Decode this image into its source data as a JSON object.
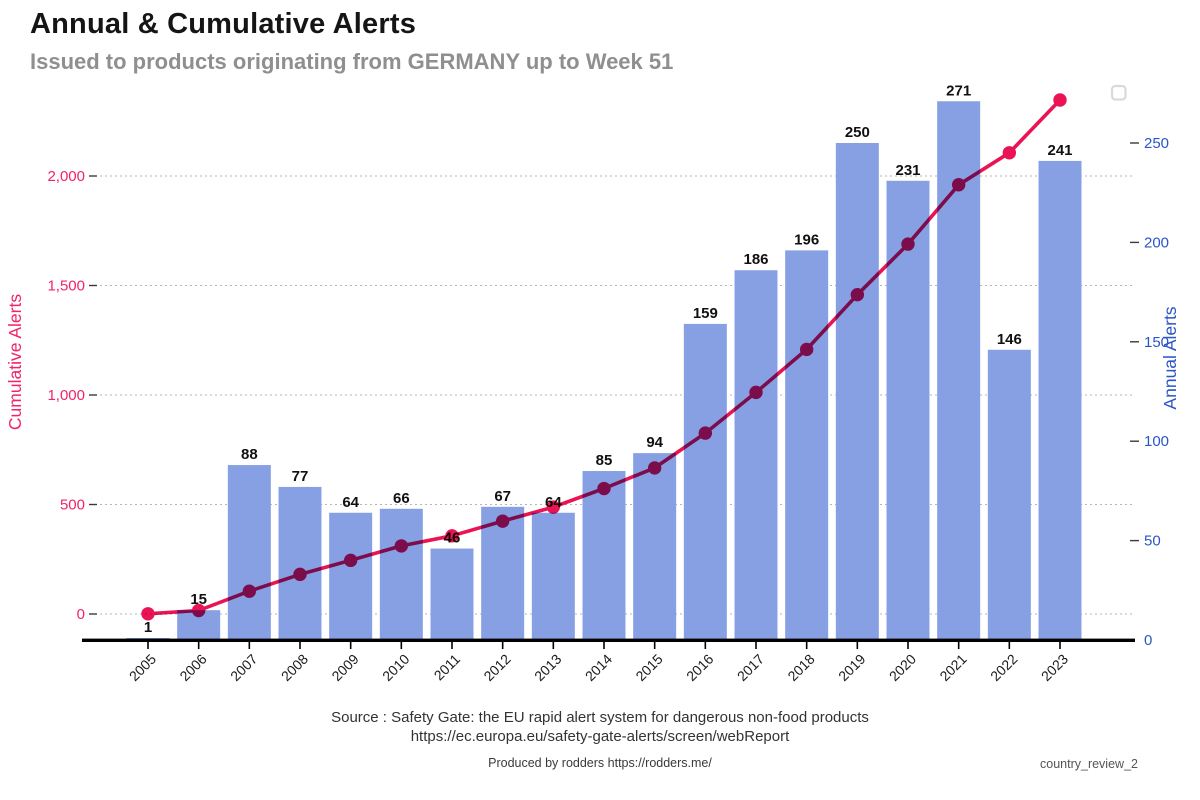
{
  "header": {
    "title": "Annual & Cumulative Alerts",
    "subtitle": "Issued to products originating from GERMANY up to Week 51"
  },
  "chart_data": {
    "type": "bar",
    "subtype": "bar-plus-cumulative-line",
    "categories": [
      "2005",
      "2006",
      "2007",
      "2008",
      "2009",
      "2010",
      "2011",
      "2012",
      "2013",
      "2014",
      "2015",
      "2016",
      "2017",
      "2018",
      "2019",
      "2020",
      "2021",
      "2022",
      "2023"
    ],
    "series": [
      {
        "name": "Annual Alerts",
        "type": "bar",
        "axis": "right",
        "color": "#87A0E3",
        "values": [
          1,
          15,
          88,
          77,
          64,
          66,
          46,
          67,
          64,
          85,
          94,
          159,
          186,
          196,
          250,
          231,
          271,
          146,
          241
        ]
      },
      {
        "name": "Cumulative Alerts",
        "type": "line",
        "axis": "left",
        "color": "#EA1455",
        "marker": "circle",
        "values": [
          1,
          16,
          104,
          181,
          245,
          311,
          357,
          424,
          488,
          573,
          667,
          826,
          1012,
          1208,
          1458,
          1689,
          1960,
          2106,
          2347
        ]
      }
    ],
    "left_axis": {
      "label": "Cumulative Alerts",
      "color": "#F02467",
      "tick_labels": [
        "0",
        "500",
        "1,000",
        "1,500",
        "2,000"
      ],
      "tick_values": [
        0,
        500,
        1000,
        1500,
        2000
      ]
    },
    "right_axis": {
      "label": "Annual Alerts",
      "color": "#2B55C8",
      "tick_labels": [
        "0",
        "50",
        "100",
        "150",
        "200",
        "250"
      ],
      "tick_values": [
        0,
        50,
        100,
        150,
        200,
        250
      ]
    },
    "grid": {
      "horizontal": true,
      "style": "dotted"
    },
    "legend": {
      "visible": true,
      "empty": true
    },
    "bar_label_color": "#111111",
    "year_label_color": "#1b1b1b"
  },
  "footer": {
    "source_line1": "Source : Safety Gate: the EU rapid alert system for dangerous non-food products",
    "source_line2": "https://ec.europa.eu/safety-gate-alerts/screen/webReport",
    "produced_by": "Produced by rodders https://rodders.me/",
    "watermark": "country_review_2"
  }
}
